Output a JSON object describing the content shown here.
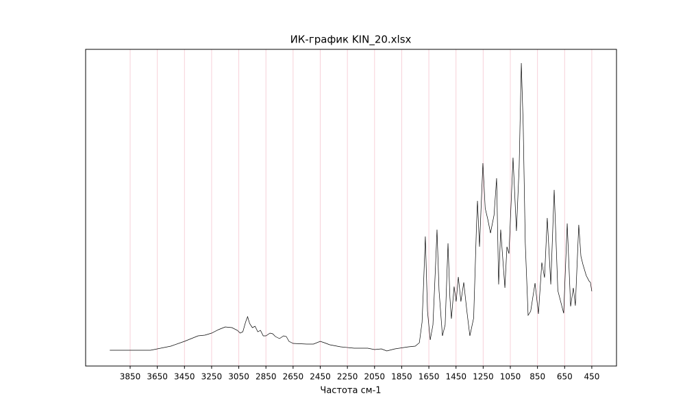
{
  "chart_data": {
    "type": "line",
    "title": "ИК-график KIN_20.xlsx",
    "xlabel": "Частота см-1",
    "xlim": [
      4178,
      268
    ],
    "ylim": [
      0,
      462
    ],
    "xticks": [
      3850,
      3650,
      3450,
      3250,
      3050,
      2850,
      2650,
      2450,
      2250,
      2050,
      1850,
      1650,
      1450,
      1250,
      1050,
      850,
      650,
      450
    ],
    "grid": true,
    "grid_color": "#f7d0d8",
    "series": [
      {
        "color": "#000000",
        "x": [
          4000,
          3800,
          3700,
          3650,
          3550,
          3450,
          3350,
          3300,
          3250,
          3200,
          3150,
          3100,
          3060,
          3040,
          3020,
          3000,
          2985,
          2970,
          2950,
          2930,
          2910,
          2890,
          2870,
          2850,
          2820,
          2800,
          2780,
          2750,
          2720,
          2700,
          2680,
          2650,
          2550,
          2500,
          2450,
          2420,
          2380,
          2300,
          2200,
          2100,
          2050,
          2000,
          1960,
          1940,
          1900,
          1800,
          1750,
          1720,
          1700,
          1690,
          1676,
          1660,
          1640,
          1620,
          1600,
          1590,
          1575,
          1550,
          1530,
          1509,
          1495,
          1484,
          1464,
          1449,
          1433,
          1414,
          1393,
          1370,
          1348,
          1320,
          1300,
          1292,
          1277,
          1252,
          1235,
          1216,
          1196,
          1170,
          1151,
          1136,
          1121,
          1090,
          1075,
          1060,
          1030,
          1005,
          985,
          969,
          955,
          940,
          919,
          900,
          868,
          843,
          818,
          798,
          778,
          752,
          727,
          700,
          657,
          631,
          606,
          586,
          571,
          546,
          530,
          515,
          491,
          470,
          460,
          450
        ],
        "values": [
          23,
          23,
          23,
          25,
          29,
          36,
          44,
          45,
          48,
          53,
          57,
          56,
          52,
          48,
          50,
          64,
          72,
          62,
          56,
          58,
          50,
          52,
          44,
          44,
          48,
          47,
          43,
          40,
          44,
          43,
          36,
          33,
          32,
          32,
          36,
          34,
          31,
          28,
          26,
          26,
          24,
          25,
          22,
          23,
          25,
          28,
          29,
          34,
          64,
          114,
          189,
          80,
          38,
          60,
          150,
          199,
          110,
          44,
          60,
          179,
          100,
          69,
          116,
          94,
          130,
          94,
          122,
          80,
          44,
          70,
          200,
          241,
          174,
          296,
          230,
          214,
          194,
          220,
          274,
          119,
          199,
          114,
          174,
          164,
          304,
          197,
          290,
          442,
          350,
          180,
          74,
          80,
          121,
          76,
          151,
          129,
          216,
          119,
          257,
          110,
          77,
          208,
          87,
          114,
          88,
          206,
          160,
          148,
          132,
          124,
          122,
          109
        ]
      }
    ]
  }
}
